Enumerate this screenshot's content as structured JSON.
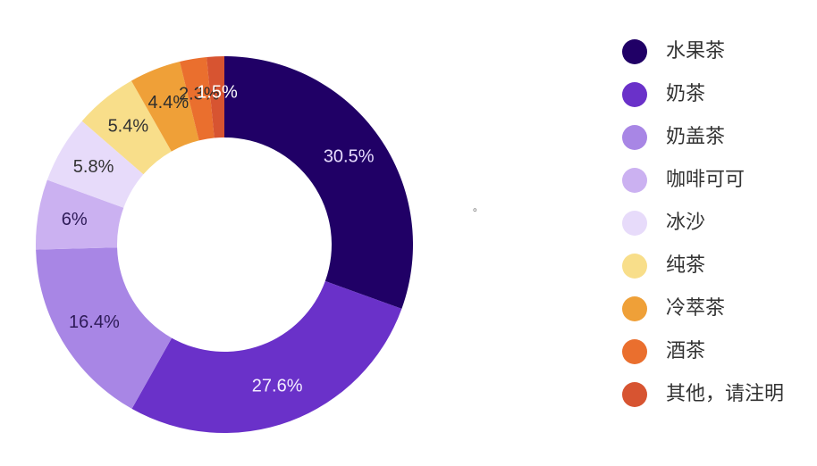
{
  "chart_data": {
    "type": "pie",
    "variant": "donut",
    "start_angle_deg": 0,
    "direction": "clockwise",
    "legend_position": "right",
    "series": [
      {
        "name": "水果茶",
        "value": 30.5,
        "label": "30.5%",
        "color": "#200066",
        "label_color": "#e8ddff"
      },
      {
        "name": "奶茶",
        "value": 27.6,
        "label": "27.6%",
        "color": "#6a31c9",
        "label_color": "#f3edff"
      },
      {
        "name": "奶盖茶",
        "value": 16.4,
        "label": "16.4%",
        "color": "#a886e5",
        "label_color": "#2d1a57"
      },
      {
        "name": "咖啡可可",
        "value": 6.0,
        "label": "6%",
        "color": "#cbb1f1",
        "label_color": "#2d1a57"
      },
      {
        "name": "冰沙",
        "value": 5.8,
        "label": "5.8%",
        "color": "#e7dbfa",
        "label_color": "#333333"
      },
      {
        "name": "纯茶",
        "value": 5.4,
        "label": "5.4%",
        "color": "#f8de8a",
        "label_color": "#333333"
      },
      {
        "name": "冷萃茶",
        "value": 4.4,
        "label": "4.4%",
        "color": "#efa038",
        "label_color": "#2e2e2e"
      },
      {
        "name": "酒茶",
        "value": 2.3,
        "label": "2.3%",
        "color": "#ea6f2e",
        "label_color": "#2e2e2e"
      },
      {
        "name": "其他，请注明",
        "value": 1.5,
        "label": "1.5%",
        "color": "#d75431",
        "label_color": "#ffffff"
      }
    ]
  },
  "decoration": {
    "small_mark": "。"
  }
}
